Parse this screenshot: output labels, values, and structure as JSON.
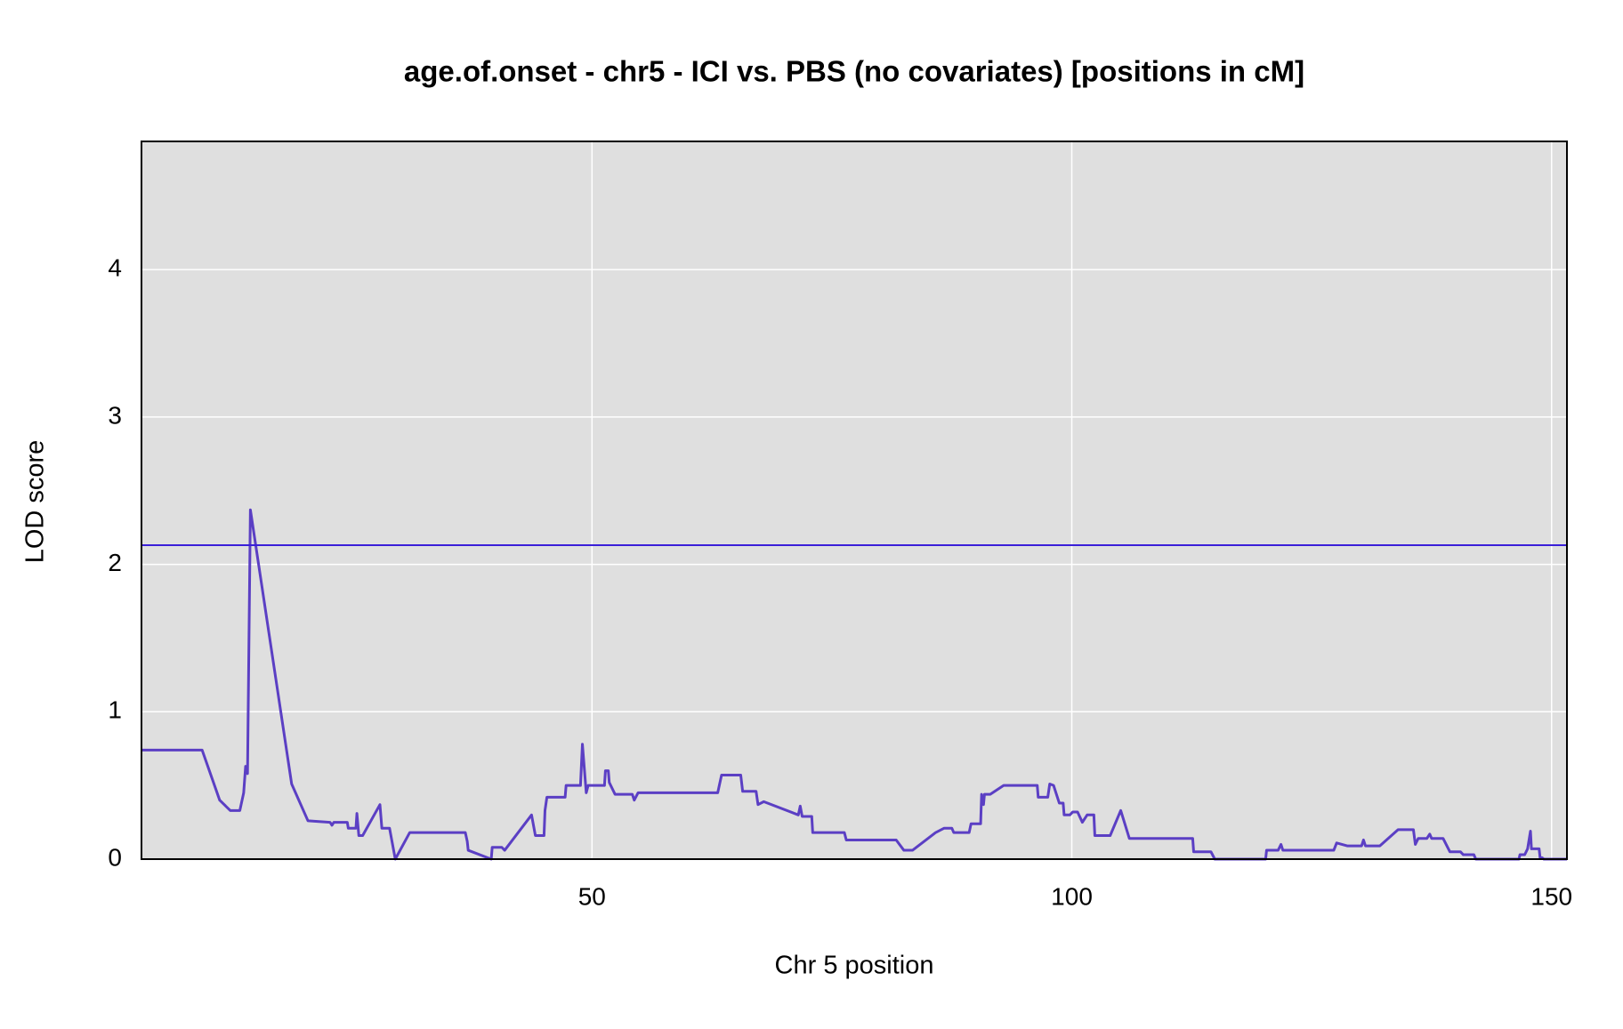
{
  "chart_data": {
    "type": "line",
    "title": "age.of.onset - chr5 - ICI vs. PBS (no covariates) [positions in cM]",
    "xlabel": "Chr 5 position",
    "ylabel": "LOD score",
    "xlim": [
      3.05,
      151.6
    ],
    "ylim": [
      0,
      4.87
    ],
    "xticks": [
      50,
      100,
      150
    ],
    "yticks": [
      0,
      1,
      2,
      3,
      4
    ],
    "grid": true,
    "threshold": 2.13,
    "threshold_color": "#3a1fd8",
    "series": [
      {
        "color": "#5b3fc4",
        "x": [
          3.05,
          9.37,
          11.2,
          12.3,
          13.3,
          13.7,
          13.9,
          14.1,
          14.4,
          18.7,
          20.4,
          22.7,
          22.9,
          23.1,
          24.5,
          24.6,
          25.4,
          25.5,
          25.7,
          26.1,
          27.9,
          28.1,
          28.9,
          29.5,
          31.0,
          36.8,
          37.0,
          37.1,
          39.5,
          39.6,
          40.6,
          40.9,
          43.7,
          44.1,
          45.0,
          45.1,
          45.3,
          47.2,
          47.3,
          48.8,
          49.0,
          49.4,
          49.6,
          51.3,
          51.4,
          51.7,
          51.8,
          52.4,
          54.2,
          54.4,
          54.8,
          63.1,
          63.5,
          65.5,
          65.7,
          67.1,
          67.3,
          67.9,
          71.5,
          71.7,
          71.9,
          72.9,
          73.0,
          76.3,
          76.5,
          81.7,
          82.5,
          83.4,
          85.8,
          86.7,
          87.5,
          87.7,
          89.3,
          89.5,
          90.5,
          90.6,
          90.8,
          90.9,
          91.5,
          92.9,
          96.4,
          96.5,
          97.5,
          97.7,
          98.1,
          98.7,
          99.1,
          99.2,
          99.8,
          100.1,
          100.6,
          101.1,
          101.6,
          102.3,
          102.4,
          104.0,
          105.1,
          106.0,
          112.6,
          112.7,
          114.5,
          114.9,
          120.2,
          120.3,
          121.5,
          121.8,
          122.0,
          127.3,
          127.6,
          128.7,
          130.2,
          130.4,
          130.6,
          132.1,
          134.0,
          135.6,
          135.8,
          136.1,
          137.0,
          137.3,
          137.5,
          138.7,
          139.4,
          140.5,
          140.8,
          141.9,
          142.1,
          146.6,
          146.7,
          147.2,
          147.5,
          147.8,
          147.9,
          148.7,
          148.8,
          149.0,
          149.2,
          151.6
        ],
        "values": [
          0.74,
          0.74,
          0.4,
          0.33,
          0.33,
          0.45,
          0.63,
          0.58,
          2.37,
          0.51,
          0.26,
          0.25,
          0.23,
          0.25,
          0.25,
          0.21,
          0.21,
          0.31,
          0.16,
          0.16,
          0.37,
          0.21,
          0.21,
          0,
          0.18,
          0.18,
          0.12,
          0.06,
          0,
          0.08,
          0.08,
          0.06,
          0.3,
          0.16,
          0.16,
          0.33,
          0.42,
          0.42,
          0.5,
          0.5,
          0.78,
          0.45,
          0.5,
          0.5,
          0.6,
          0.6,
          0.52,
          0.44,
          0.44,
          0.4,
          0.45,
          0.45,
          0.57,
          0.57,
          0.46,
          0.46,
          0.37,
          0.39,
          0.3,
          0.36,
          0.29,
          0.29,
          0.18,
          0.18,
          0.13,
          0.13,
          0.06,
          0.06,
          0.18,
          0.21,
          0.21,
          0.18,
          0.18,
          0.24,
          0.24,
          0.44,
          0.37,
          0.44,
          0.44,
          0.5,
          0.5,
          0.42,
          0.42,
          0.51,
          0.5,
          0.38,
          0.38,
          0.3,
          0.3,
          0.32,
          0.32,
          0.25,
          0.3,
          0.3,
          0.16,
          0.16,
          0.33,
          0.14,
          0.14,
          0.05,
          0.05,
          0,
          0,
          0.06,
          0.06,
          0.1,
          0.06,
          0.06,
          0.11,
          0.09,
          0.09,
          0.13,
          0.09,
          0.09,
          0.2,
          0.2,
          0.1,
          0.14,
          0.14,
          0.17,
          0.14,
          0.14,
          0.05,
          0.05,
          0.03,
          0.03,
          0,
          0,
          0.03,
          0.03,
          0.07,
          0.19,
          0.07,
          0.07,
          0.01,
          0.01,
          0,
          0
        ]
      }
    ]
  }
}
